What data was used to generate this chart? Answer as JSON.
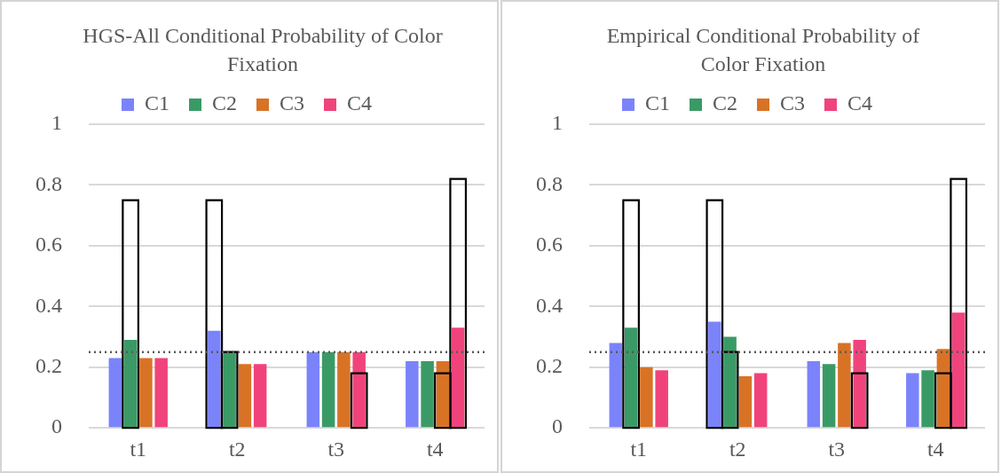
{
  "chart_data": [
    {
      "type": "bar",
      "title": "HGS-All Conditional Probability of Color Fixation",
      "categories": [
        "t1",
        "t2",
        "t3",
        "t4"
      ],
      "ylim": [
        0,
        1
      ],
      "yticks": [
        0,
        0.2,
        0.4,
        0.6,
        0.8,
        1
      ],
      "grid": "y",
      "legend": "top",
      "ref_lines": [
        {
          "axis": "y",
          "value": 0.25,
          "color": "#595959",
          "line_style": "dotted"
        }
      ],
      "series": [
        {
          "name": "C1",
          "color": "#7b83fb",
          "values": [
            0.23,
            0.32,
            0.25,
            0.22
          ]
        },
        {
          "name": "C2",
          "color": "#3a9a66",
          "values": [
            0.29,
            0.25,
            0.25,
            0.22
          ]
        },
        {
          "name": "C3",
          "color": "#d87326",
          "values": [
            0.23,
            0.21,
            0.25,
            0.22
          ]
        },
        {
          "name": "C4",
          "color": "#f0437c",
          "values": [
            0.23,
            0.21,
            0.25,
            0.33
          ]
        },
        {
          "color": "#000000",
          "values": [
            null,
            0.75,
            null,
            null
          ]
        },
        {
          "color": "#000000",
          "values": [
            0.75,
            0.25,
            null,
            null
          ]
        },
        {
          "color": "#000000",
          "values": [
            null,
            null,
            null,
            0.18
          ]
        },
        {
          "color": "#000000",
          "values": [
            null,
            null,
            0.18,
            0.82
          ]
        }
      ]
    },
    {
      "type": "bar",
      "title": "Empirical Conditional Probability of Color Fixation",
      "categories": [
        "t1",
        "t2",
        "t3",
        "t4"
      ],
      "ylim": [
        0,
        1
      ],
      "yticks": [
        0,
        0.2,
        0.4,
        0.6,
        0.8,
        1
      ],
      "grid": "y",
      "legend": "top",
      "ref_lines": [
        {
          "axis": "y",
          "value": 0.25,
          "color": "#595959",
          "line_style": "dotted"
        }
      ],
      "series": [
        {
          "name": "C1",
          "color": "#7b83fb",
          "values": [
            0.28,
            0.35,
            0.22,
            0.18
          ]
        },
        {
          "name": "C2",
          "color": "#3a9a66",
          "values": [
            0.33,
            0.3,
            0.21,
            0.19
          ]
        },
        {
          "name": "C3",
          "color": "#d87326",
          "values": [
            0.2,
            0.17,
            0.28,
            0.26
          ]
        },
        {
          "name": "C4",
          "color": "#f0437c",
          "values": [
            0.19,
            0.18,
            0.29,
            0.38
          ]
        },
        {
          "color": "#000000",
          "values": [
            null,
            0.75,
            null,
            null
          ]
        },
        {
          "color": "#000000",
          "values": [
            0.75,
            0.25,
            null,
            null
          ]
        },
        {
          "color": "#000000",
          "values": [
            null,
            null,
            null,
            0.18
          ]
        },
        {
          "color": "#000000",
          "values": [
            null,
            null,
            0.18,
            0.82
          ]
        }
      ]
    }
  ]
}
